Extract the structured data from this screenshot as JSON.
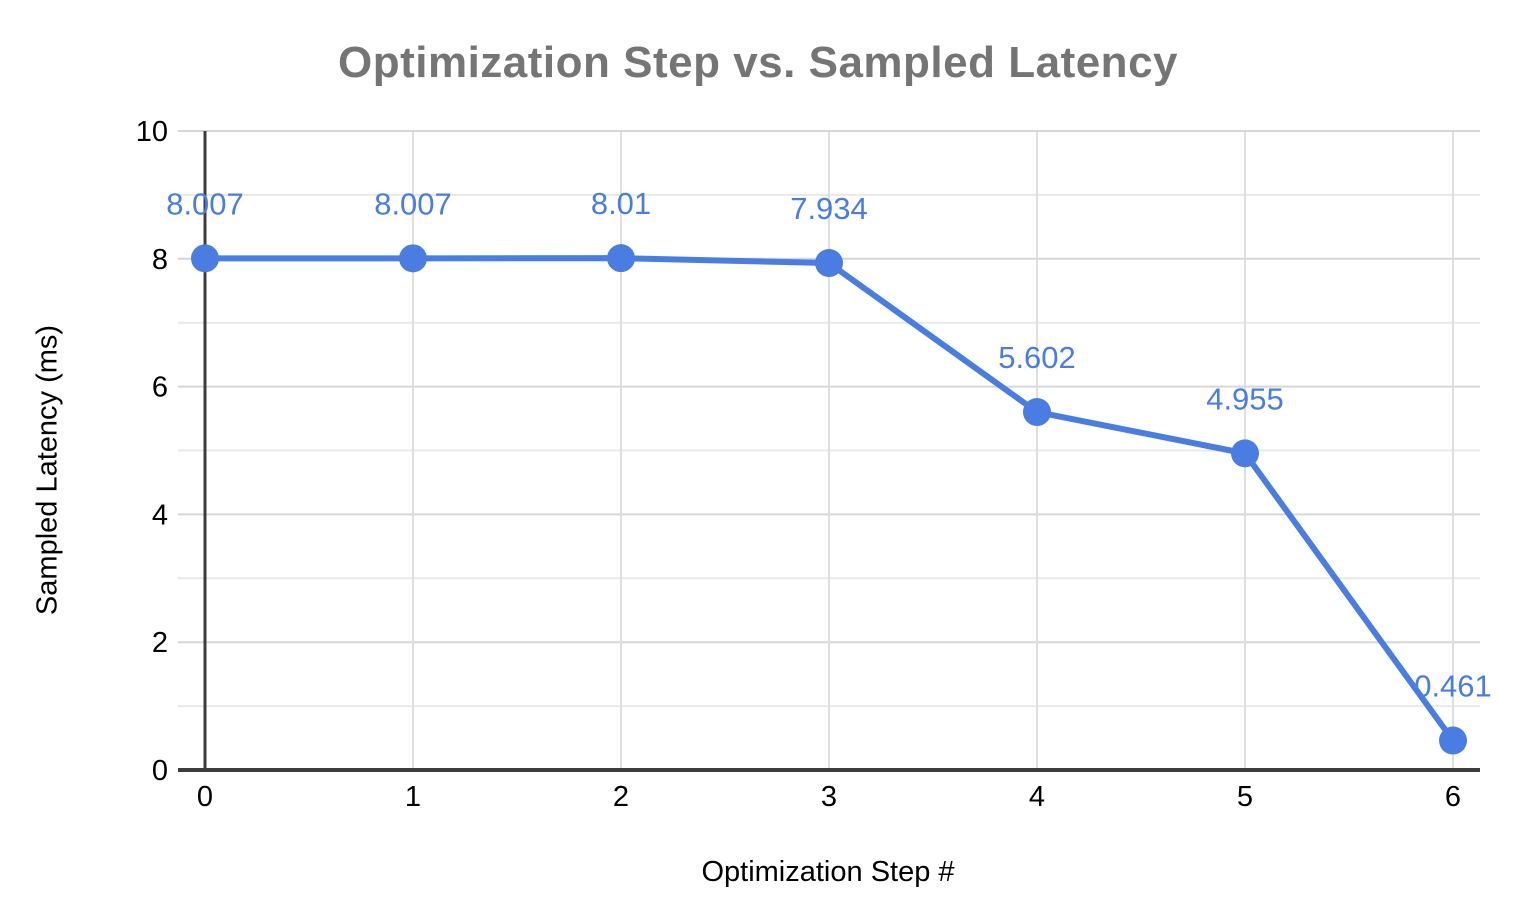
{
  "chart_data": {
    "type": "line",
    "title": "Optimization Step vs. Sampled Latency",
    "xlabel": "Optimization Step #",
    "ylabel": "Sampled Latency (ms)",
    "x": [
      0,
      1,
      2,
      3,
      4,
      5,
      6
    ],
    "x_tick_labels": [
      "0",
      "1",
      "2",
      "3",
      "4",
      "5",
      "6"
    ],
    "series": [
      {
        "values": [
          8.007,
          8.007,
          8.01,
          7.934,
          5.602,
          4.955,
          0.461
        ],
        "point_labels": [
          "8.007",
          "8.007",
          "8.01",
          "7.934",
          "5.602",
          "4.955",
          "0.461"
        ]
      }
    ],
    "ylim": [
      0,
      10
    ],
    "y_major_ticks": [
      0,
      2,
      4,
      6,
      8,
      10
    ],
    "y_minor_tick_step": 1,
    "grid": {
      "horizontal_major": true,
      "horizontal_minor": true,
      "vertical": true
    },
    "legend_position": "none",
    "colors": {
      "series": "#4a7de2",
      "title_text": "#757575",
      "axis_text": "#000000",
      "major_grid": "#d6d6d6",
      "minor_grid": "#e9e9e9",
      "vertical_grid": "#dedede",
      "axis_line": "#3d3d3d",
      "background": "#ffffff"
    }
  }
}
